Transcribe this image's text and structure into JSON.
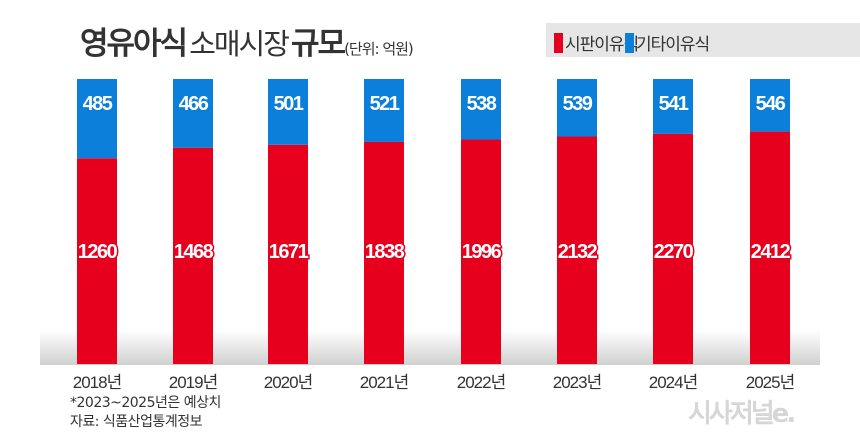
{
  "title": {
    "bold1": "영유아식",
    "normal": "소매시장",
    "bold2": "규모",
    "unit": "(단위: 억원)"
  },
  "legend": [
    {
      "label": "시판이유식",
      "color": "#e6001e"
    },
    {
      "label": "기타이유식",
      "color": "#0b7fd9"
    }
  ],
  "notes": {
    "forecast": "*2023~2025년은 예상치",
    "source": "자료: 식품산업통계정보"
  },
  "logo": "시사저널e.",
  "chart_data": {
    "type": "bar",
    "stacking": "100% stacked",
    "categories": [
      "2018년",
      "2019년",
      "2020년",
      "2021년",
      "2022년",
      "2023년",
      "2024년",
      "2025년"
    ],
    "series": [
      {
        "name": "시판이유식",
        "color": "#e6001e",
        "values": [
          1260,
          1468,
          1671,
          1838,
          1996,
          2132,
          2270,
          2412
        ]
      },
      {
        "name": "기타이유식",
        "color": "#0b7fd9",
        "values": [
          485,
          466,
          501,
          521,
          538,
          539,
          541,
          546
        ]
      }
    ],
    "title": "영유아식 소매시장 규모",
    "unit": "억원",
    "grid": false,
    "legend_position": "top-right"
  }
}
